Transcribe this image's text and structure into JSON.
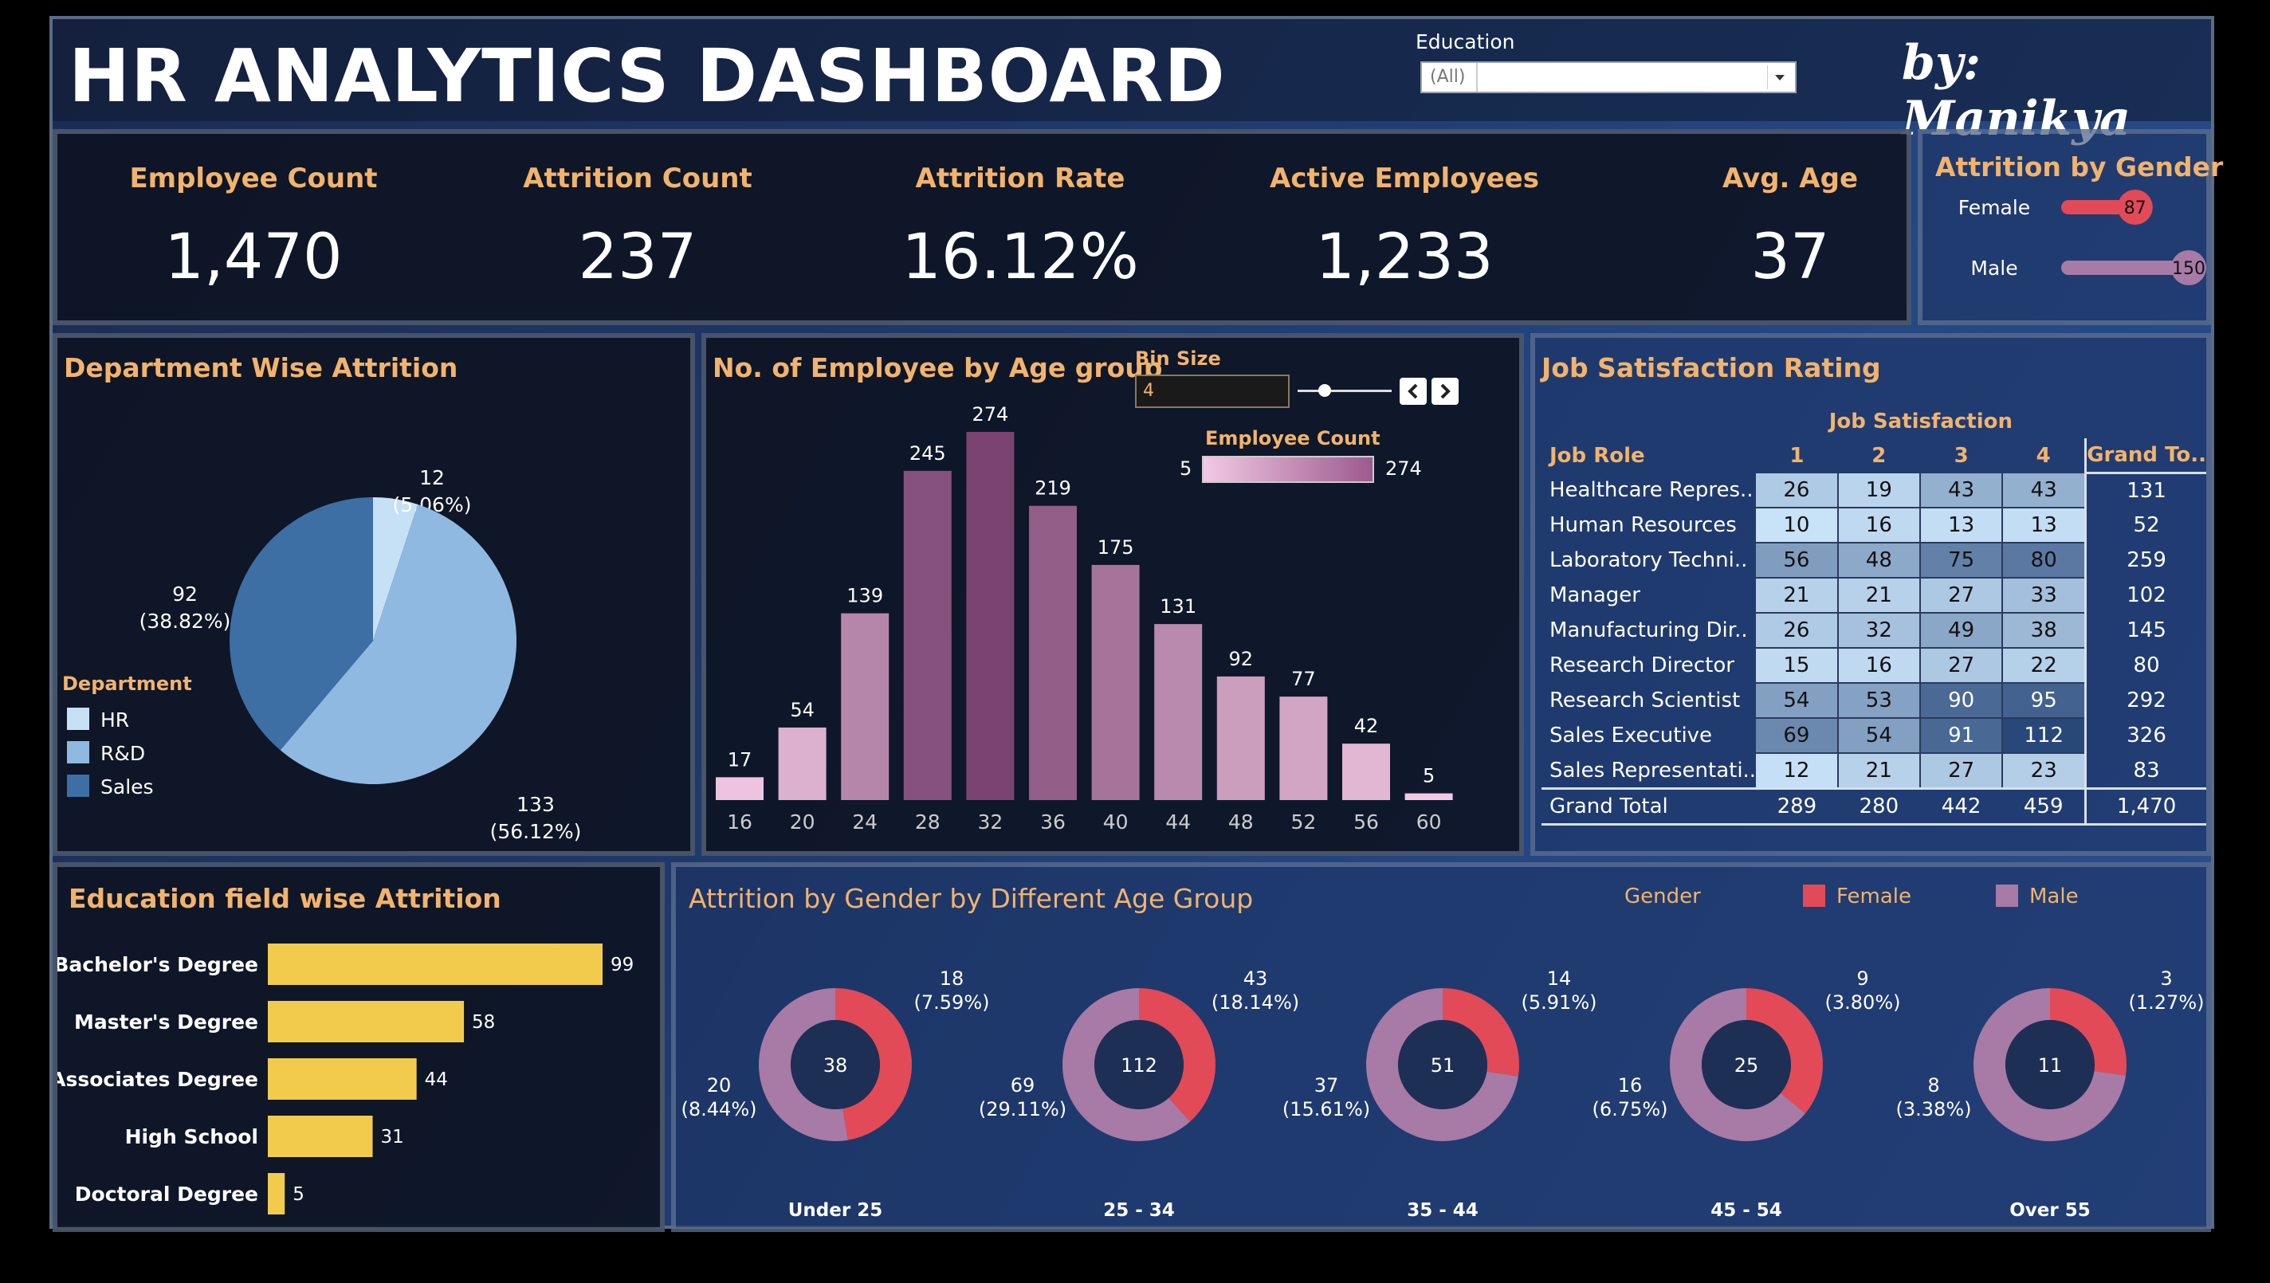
{
  "header": {
    "title": "HR ANALYTICS DASHBOARD",
    "author": "by: Manikya",
    "filter_label": "Education",
    "filter_value": "(All)"
  },
  "kpis": [
    {
      "label": "Employee Count",
      "value": "1,470"
    },
    {
      "label": "Attrition Count",
      "value": "237"
    },
    {
      "label": "Attrition Rate",
      "value": "16.12%"
    },
    {
      "label": "Active Employees",
      "value": "1,233"
    },
    {
      "label": "Avg. Age",
      "value": "37"
    }
  ],
  "colors": {
    "accent": "#f2b36c",
    "hr": "#c6e0f5",
    "rd": "#8fb9e0",
    "sales": "#3d6ea4",
    "female": "#e24a57",
    "male": "#a87aa6",
    "edu": "#f2cb4c"
  },
  "age_controls": {
    "bin_label": "Bin Size",
    "bin_value": "4",
    "legend_label": "Employee Count",
    "legend_min": "5",
    "legend_max": "274"
  },
  "donut_legend": {
    "label": "Gender",
    "female": "Female",
    "male": "Male"
  },
  "chart_data": [
    {
      "id": "gender_attrition",
      "type": "bar",
      "title": "Attrition by Gender",
      "categories": [
        "Female",
        "Male"
      ],
      "values": [
        87,
        150
      ]
    },
    {
      "id": "department",
      "type": "pie",
      "title": "Department Wise Attrition",
      "legend_title": "Department",
      "categories": [
        "HR",
        "R&D",
        "Sales"
      ],
      "values": [
        12,
        133,
        92
      ],
      "labels": [
        [
          "12",
          "(5.06%)"
        ],
        [
          "133",
          "(56.12%)"
        ],
        [
          "92",
          "(38.82%)"
        ]
      ]
    },
    {
      "id": "age_groups",
      "type": "bar",
      "title": "No. of Employee by Age group",
      "categories": [
        "16",
        "20",
        "24",
        "28",
        "32",
        "36",
        "40",
        "44",
        "48",
        "52",
        "56",
        "60"
      ],
      "values": [
        17,
        54,
        139,
        245,
        274,
        219,
        175,
        131,
        92,
        77,
        42,
        5
      ],
      "color_range": [
        5,
        274
      ]
    },
    {
      "id": "job_satisfaction",
      "type": "table",
      "title": "Job Satisfaction Rating",
      "column_group": "Job Satisfaction",
      "row_header": "Job Role",
      "columns": [
        "1",
        "2",
        "3",
        "4"
      ],
      "total_header": "Grand To..",
      "rows": [
        {
          "role": "Healthcare Repres..",
          "values": [
            26,
            19,
            43,
            43
          ],
          "total": "131"
        },
        {
          "role": "Human Resources",
          "values": [
            10,
            16,
            13,
            13
          ],
          "total": "52"
        },
        {
          "role": "Laboratory Techni..",
          "values": [
            56,
            48,
            75,
            80
          ],
          "total": "259"
        },
        {
          "role": "Manager",
          "values": [
            21,
            21,
            27,
            33
          ],
          "total": "102"
        },
        {
          "role": "Manufacturing Dir..",
          "values": [
            26,
            32,
            49,
            38
          ],
          "total": "145"
        },
        {
          "role": "Research Director",
          "values": [
            15,
            16,
            27,
            22
          ],
          "total": "80"
        },
        {
          "role": "Research Scientist",
          "values": [
            54,
            53,
            90,
            95
          ],
          "total": "292"
        },
        {
          "role": "Sales Executive",
          "values": [
            69,
            54,
            91,
            112
          ],
          "total": "326"
        },
        {
          "role": "Sales Representati..",
          "values": [
            12,
            21,
            27,
            23
          ],
          "total": "83"
        }
      ],
      "grand_total": {
        "label": "Grand Total",
        "values": [
          "289",
          "280",
          "442",
          "459"
        ],
        "total": "1,470"
      }
    },
    {
      "id": "education",
      "type": "bar",
      "title": "Education field wise Attrition",
      "categories": [
        "Bachelor's Degree",
        "Master's Degree",
        "Associates Degree",
        "High School",
        "Doctoral Degree"
      ],
      "values": [
        99,
        58,
        44,
        31,
        5
      ]
    },
    {
      "id": "gender_age",
      "type": "pie",
      "title": "Attrition by Gender by Different Age Group",
      "groups": [
        {
          "name": "Under 25",
          "total": "38",
          "female": 18,
          "male": 20,
          "female_label": [
            "18",
            "(7.59%)"
          ],
          "male_label": [
            "20",
            "(8.44%)"
          ]
        },
        {
          "name": "25 - 34",
          "total": "112",
          "female": 43,
          "male": 69,
          "female_label": [
            "43",
            "(18.14%)"
          ],
          "male_label": [
            "69",
            "(29.11%)"
          ]
        },
        {
          "name": "35 - 44",
          "total": "51",
          "female": 14,
          "male": 37,
          "female_label": [
            "14",
            "(5.91%)"
          ],
          "male_label": [
            "37",
            "(15.61%)"
          ]
        },
        {
          "name": "45 - 54",
          "total": "25",
          "female": 9,
          "male": 16,
          "female_label": [
            "9",
            "(3.80%)"
          ],
          "male_label": [
            "16",
            "(6.75%)"
          ]
        },
        {
          "name": "Over 55",
          "total": "11",
          "female": 3,
          "male": 8,
          "female_label": [
            "3",
            "(1.27%)"
          ],
          "male_label": [
            "8",
            "(3.38%)"
          ]
        }
      ]
    }
  ]
}
